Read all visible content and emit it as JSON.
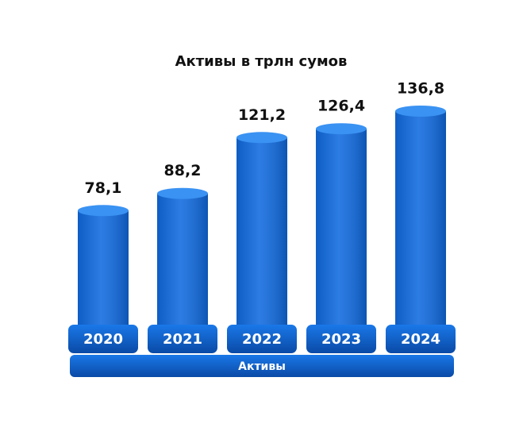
{
  "chart_data": {
    "type": "bar",
    "title": "Активы в трлн сумов",
    "categories": [
      "2020",
      "2021",
      "2022",
      "2023",
      "2024"
    ],
    "values": [
      78.1,
      88.2,
      121.2,
      126.4,
      136.8
    ],
    "value_labels": [
      "78,1",
      "88,2",
      "121,2",
      "126,4",
      "136,8"
    ],
    "x_label": "Активы",
    "color": "#0f6ae0"
  }
}
